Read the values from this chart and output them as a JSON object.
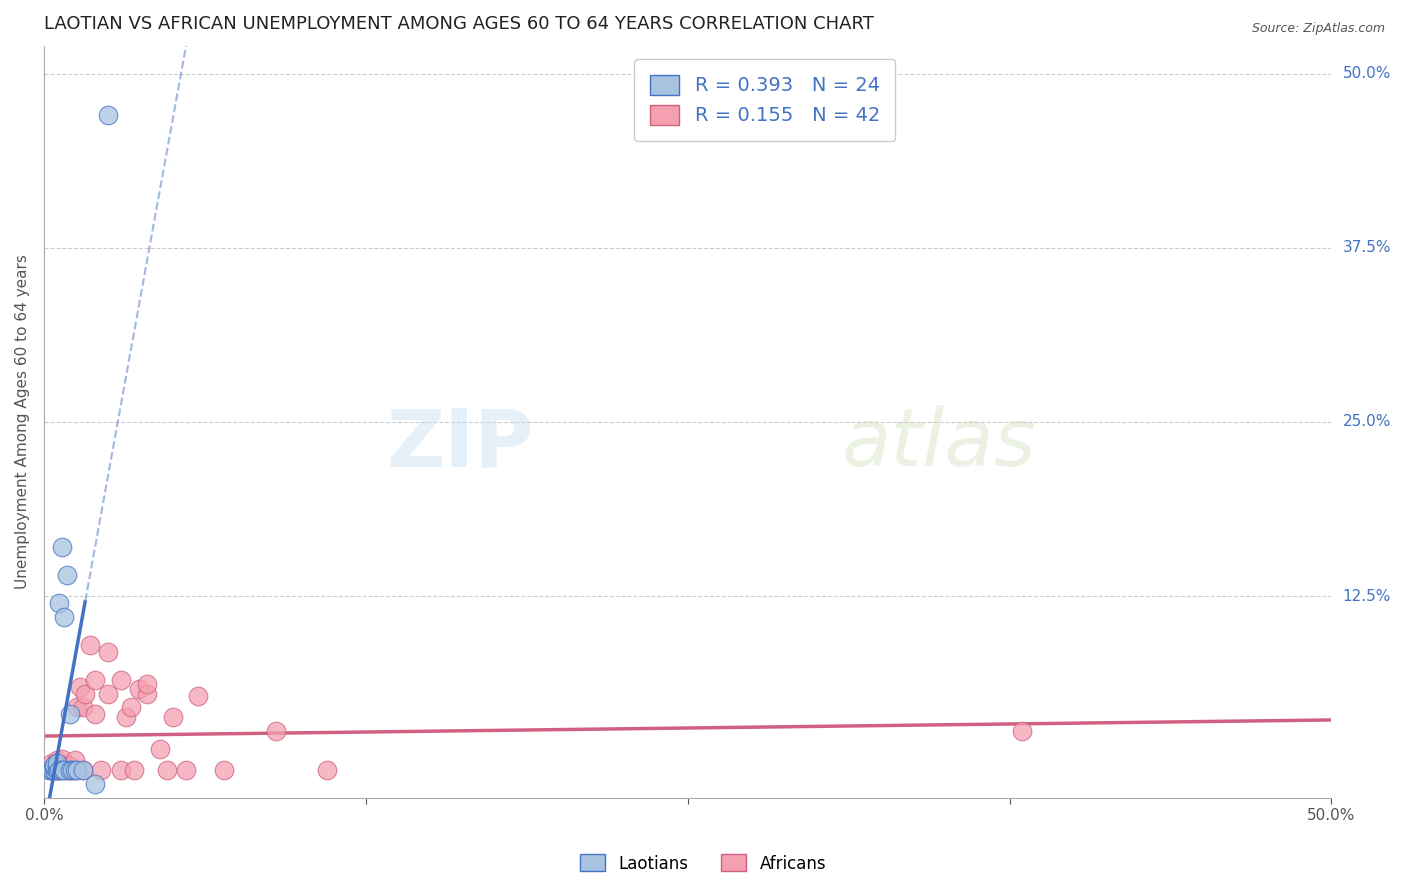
{
  "title": "LAOTIAN VS AFRICAN UNEMPLOYMENT AMONG AGES 60 TO 64 YEARS CORRELATION CHART",
  "source": "Source: ZipAtlas.com",
  "ylabel": "Unemployment Among Ages 60 to 64 years",
  "xlim": [
    0.0,
    0.5
  ],
  "ylim": [
    -0.02,
    0.52
  ],
  "ytick_positions": [
    0.125,
    0.25,
    0.375,
    0.5
  ],
  "ytick_labels": [
    "12.5%",
    "25.0%",
    "37.5%",
    "50.0%"
  ],
  "background_color": "#ffffff",
  "laotian_color": "#a8c4e0",
  "african_color": "#f4a0b0",
  "laotian_line_color": "#4472c4",
  "african_line_color": "#d06080",
  "legend_laotian_R": "R = 0.393",
  "legend_laotian_N": "N = 24",
  "legend_african_R": "R = 0.155",
  "legend_african_N": "N = 42",
  "laotian_x": [
    0.002,
    0.003,
    0.003,
    0.004,
    0.004,
    0.004,
    0.005,
    0.005,
    0.005,
    0.006,
    0.006,
    0.007,
    0.007,
    0.008,
    0.008,
    0.009,
    0.01,
    0.01,
    0.011,
    0.012,
    0.013,
    0.015,
    0.02,
    0.025
  ],
  "laotian_y": [
    0.0,
    0.0,
    0.0,
    0.0,
    0.002,
    0.004,
    0.0,
    0.003,
    0.005,
    0.0,
    0.12,
    0.0,
    0.16,
    0.0,
    0.11,
    0.14,
    0.0,
    0.04,
    0.0,
    0.0,
    0.0,
    0.0,
    -0.01,
    0.47
  ],
  "african_x": [
    0.003,
    0.003,
    0.004,
    0.005,
    0.005,
    0.005,
    0.006,
    0.007,
    0.007,
    0.008,
    0.009,
    0.01,
    0.01,
    0.012,
    0.013,
    0.014,
    0.015,
    0.015,
    0.016,
    0.018,
    0.02,
    0.02,
    0.022,
    0.025,
    0.025,
    0.03,
    0.03,
    0.032,
    0.034,
    0.035,
    0.037,
    0.04,
    0.04,
    0.045,
    0.048,
    0.05,
    0.055,
    0.06,
    0.07,
    0.09,
    0.11,
    0.38
  ],
  "african_y": [
    0.0,
    0.005,
    0.0,
    0.0,
    0.003,
    0.007,
    0.0,
    0.003,
    0.008,
    0.003,
    0.0,
    0.0,
    0.003,
    0.007,
    0.045,
    0.06,
    0.0,
    0.045,
    0.055,
    0.09,
    0.04,
    0.065,
    0.0,
    0.055,
    0.085,
    0.065,
    0.0,
    0.038,
    0.045,
    0.0,
    0.058,
    0.055,
    0.062,
    0.015,
    0.0,
    0.038,
    0.0,
    0.053,
    0.0,
    0.028,
    0.0,
    0.028
  ],
  "title_fontsize": 13,
  "axis_label_fontsize": 11,
  "tick_fontsize": 11,
  "legend_fontsize": 14
}
